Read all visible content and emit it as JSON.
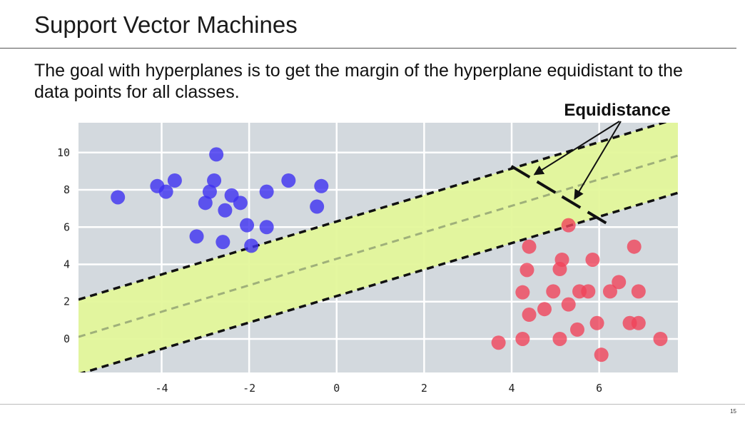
{
  "slide": {
    "title": "Support Vector Machines",
    "body": "The goal with hyperplanes is to get the margin of the hyperplane equidistant to the data points for all classes.",
    "page_number": "15"
  },
  "chart_data": {
    "type": "scatter",
    "title": "",
    "xlabel": "",
    "ylabel": "",
    "xlim": [
      -5.9,
      7.8
    ],
    "ylim": [
      -1.8,
      11.6
    ],
    "xticks": [
      -4,
      -2,
      0,
      2,
      4,
      6
    ],
    "yticks": [
      0,
      2,
      4,
      6,
      8,
      10
    ],
    "grid": true,
    "background": "#d3d9de",
    "series": [
      {
        "color": "#3d2ff0",
        "points": [
          [
            -5.0,
            7.6
          ],
          [
            -4.1,
            8.2
          ],
          [
            -3.9,
            7.9
          ],
          [
            -3.7,
            8.5
          ],
          [
            -2.75,
            9.9
          ],
          [
            -2.8,
            8.5
          ],
          [
            -2.9,
            7.9
          ],
          [
            -3.0,
            7.3
          ],
          [
            -2.55,
            6.9
          ],
          [
            -2.4,
            7.7
          ],
          [
            -2.2,
            7.3
          ],
          [
            -3.2,
            5.5
          ],
          [
            -2.6,
            5.2
          ],
          [
            -2.05,
            6.1
          ],
          [
            -1.95,
            5.0
          ],
          [
            -1.6,
            7.9
          ],
          [
            -1.6,
            6.0
          ],
          [
            -1.1,
            8.5
          ],
          [
            -0.45,
            7.1
          ],
          [
            -0.35,
            8.2
          ]
        ]
      },
      {
        "color": "#f0435a",
        "points": [
          [
            3.7,
            -0.2
          ],
          [
            4.25,
            0.0
          ],
          [
            4.25,
            2.5
          ],
          [
            4.35,
            3.7
          ],
          [
            4.4,
            4.95
          ],
          [
            4.4,
            1.3
          ],
          [
            4.75,
            1.6
          ],
          [
            4.95,
            2.55
          ],
          [
            5.1,
            3.75
          ],
          [
            5.15,
            4.25
          ],
          [
            5.1,
            0.0
          ],
          [
            5.3,
            6.1
          ],
          [
            5.3,
            1.85
          ],
          [
            5.5,
            0.5
          ],
          [
            5.55,
            2.55
          ],
          [
            5.75,
            2.55
          ],
          [
            5.85,
            4.25
          ],
          [
            5.95,
            0.85
          ],
          [
            6.05,
            -0.85
          ],
          [
            6.25,
            2.55
          ],
          [
            6.45,
            3.05
          ],
          [
            6.7,
            0.85
          ],
          [
            6.8,
            4.95
          ],
          [
            6.9,
            2.55
          ],
          [
            6.9,
            0.85
          ],
          [
            7.4,
            0.0
          ]
        ]
      }
    ],
    "hyperplane": {
      "slope": 0.71,
      "intercept": 4.3,
      "margin": 2.0
    },
    "margin_fill": "#e3f79a",
    "annotations": [
      {
        "text": "Equidistance"
      }
    ]
  }
}
